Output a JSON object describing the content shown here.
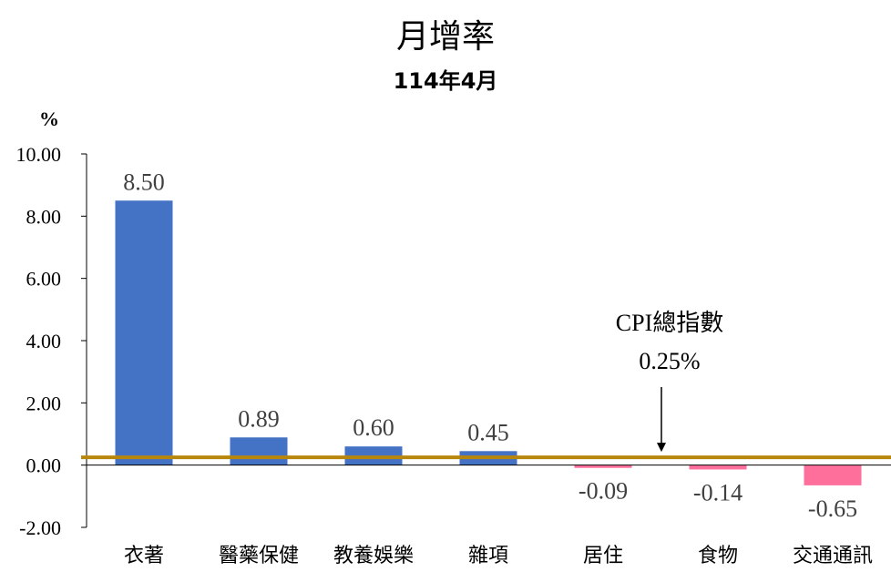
{
  "chart_data": {
    "type": "bar",
    "title": "月增率",
    "subtitle": "114年4月",
    "ylabel": "%",
    "ylim": [
      -2,
      10
    ],
    "yticks": [
      -2,
      0,
      2,
      4,
      6,
      8,
      10
    ],
    "ytick_labels": [
      "-2.00",
      "0.00",
      "2.00",
      "4.00",
      "6.00",
      "8.00",
      "10.00"
    ],
    "categories": [
      "衣著",
      "醫藥保健",
      "教養娛樂",
      "雜項",
      "居住",
      "食物",
      "交通通訊"
    ],
    "values": [
      8.5,
      0.89,
      0.6,
      0.45,
      -0.09,
      -0.14,
      -0.65
    ],
    "value_labels": [
      "8.50",
      "0.89",
      "0.60",
      "0.45",
      "-0.09",
      "-0.14",
      "-0.65"
    ],
    "colors": {
      "positive": "#4472C4",
      "negative": "#FF6F9C",
      "cpi_line": "#B8860B"
    },
    "reference_line": {
      "value": 0.25,
      "label_line1": "CPI總指數",
      "label_line2": "0.25%"
    },
    "grid": false,
    "legend": "none"
  }
}
